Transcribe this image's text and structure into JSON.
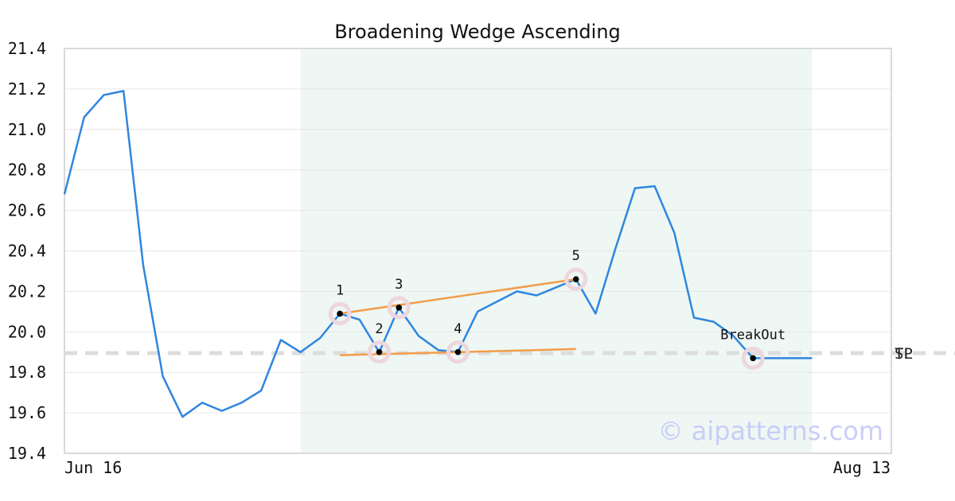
{
  "chart_data": {
    "type": "line",
    "title": "Broadening Wedge Ascending",
    "xlabel": "",
    "ylabel": "",
    "x_tick_labels": [
      "Jun 16",
      "Aug 13"
    ],
    "ylim": [
      19.4,
      21.4
    ],
    "yticks": [
      "19.4",
      "19.6",
      "19.8",
      "20.0",
      "20.2",
      "20.4",
      "20.6",
      "20.8",
      "21.0",
      "21.2",
      "21.4"
    ],
    "grid": true,
    "series": [
      {
        "color": "#2f86e0",
        "values": [
          20.68,
          21.06,
          21.17,
          21.19,
          20.33,
          19.78,
          19.58,
          19.65,
          19.61,
          19.65,
          19.71,
          19.96,
          19.9,
          19.97,
          20.09,
          20.06,
          19.9,
          20.12,
          19.98,
          19.91,
          19.9,
          20.1,
          20.15,
          20.2,
          20.18,
          20.22,
          20.26,
          20.09,
          20.41,
          20.71,
          20.72,
          20.49,
          20.07,
          20.05,
          19.98,
          19.87,
          19.87,
          19.87,
          19.87
        ]
      }
    ],
    "highlight_region": {
      "start_index": 12,
      "end_index": 38,
      "color": "#eef7f3"
    },
    "pivots": [
      {
        "label": "1",
        "index": 14,
        "value": 20.09
      },
      {
        "label": "2",
        "index": 16,
        "value": 19.9
      },
      {
        "label": "3",
        "index": 17,
        "value": 20.12
      },
      {
        "label": "4",
        "index": 20,
        "value": 19.9
      },
      {
        "label": "5",
        "index": 26,
        "value": 20.26
      },
      {
        "label": "BreakOut",
        "index": 35,
        "value": 19.87
      }
    ],
    "trend_lines": [
      {
        "from": {
          "index": 14,
          "value": 20.09
        },
        "to": {
          "index": 26,
          "value": 20.26
        },
        "color": "#f29d4a"
      },
      {
        "from": {
          "index": 14,
          "value": 19.885
        },
        "to": {
          "index": 26,
          "value": 19.915
        },
        "color": "#f29d4a"
      }
    ],
    "reference_line": {
      "value": 19.895,
      "color": "#dddddd",
      "labels": [
        "TP",
        "SL"
      ]
    },
    "watermark": "© aipatterns.com"
  }
}
